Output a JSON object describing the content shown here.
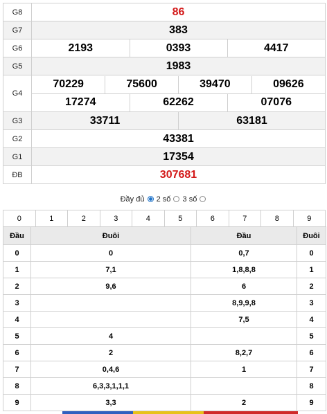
{
  "prizes": {
    "g8": {
      "label": "G8",
      "values": [
        "86"
      ]
    },
    "g7": {
      "label": "G7",
      "values": [
        "383"
      ]
    },
    "g6": {
      "label": "G6",
      "values": [
        "2193",
        "0393",
        "4417"
      ]
    },
    "g5": {
      "label": "G5",
      "values": [
        "1983"
      ]
    },
    "g4": {
      "label": "G4",
      "values": [
        "70229",
        "75600",
        "39470",
        "09626",
        "17274",
        "62262",
        "07076"
      ]
    },
    "g3": {
      "label": "G3",
      "values": [
        "33711",
        "63181"
      ]
    },
    "g2": {
      "label": "G2",
      "values": [
        "43381"
      ]
    },
    "g1": {
      "label": "G1",
      "values": [
        "17354"
      ]
    },
    "db": {
      "label": "ĐB",
      "values": [
        "307681"
      ]
    }
  },
  "filter": {
    "full": "Đầy đủ",
    "two": "2 số",
    "three": "3 số"
  },
  "digits": [
    "0",
    "1",
    "2",
    "3",
    "4",
    "5",
    "6",
    "7",
    "8",
    "9"
  ],
  "loto": {
    "headers": {
      "dau": "Đầu",
      "duoi": "Đuôi",
      "dau2": "Đầu",
      "duoi2": "Đuôi"
    },
    "rows": [
      {
        "d": "0",
        "tail": "0",
        "head": "0,7",
        "d2": "0"
      },
      {
        "d": "1",
        "tail": "7,1",
        "head": "1,8,8,8",
        "d2": "1"
      },
      {
        "d": "2",
        "tail": "9,6",
        "head": "6",
        "d2": "2"
      },
      {
        "d": "3",
        "tail": "",
        "head": "8,9,9,8",
        "d2": "3"
      },
      {
        "d": "4",
        "tail": "",
        "head": "7,5",
        "d2": "4"
      },
      {
        "d": "5",
        "tail": "4",
        "head": "",
        "d2": "5"
      },
      {
        "d": "6",
        "tail": "2",
        "head": "8,2,7",
        "d2": "6"
      },
      {
        "d": "7",
        "tail": "0,4,6",
        "head": "1",
        "d2": "7"
      },
      {
        "d": "8",
        "tail": "6,3,3,1,1,1",
        "head": "",
        "d2": "8"
      },
      {
        "d": "9",
        "tail": "3,3",
        "head": "2",
        "d2": "9"
      }
    ]
  },
  "colors": {
    "special": "#d31818",
    "accent": "#1f73c9"
  }
}
